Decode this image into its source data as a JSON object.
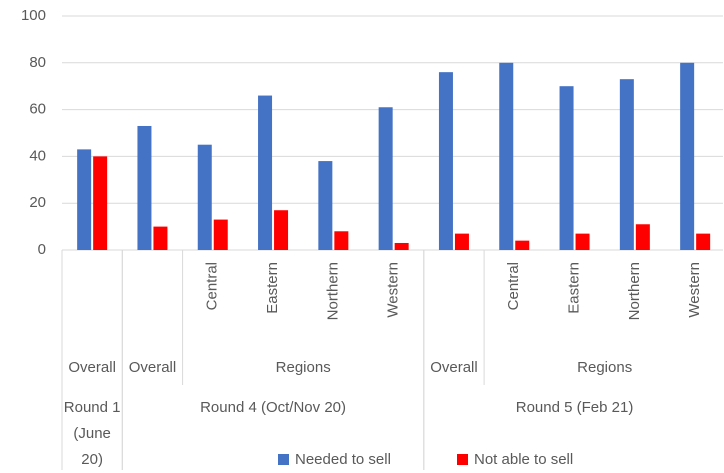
{
  "chart_data": {
    "type": "bar",
    "categories": [
      null,
      null,
      "Central",
      "Eastern",
      "Northern",
      "Western",
      null,
      "Central",
      "Eastern",
      "Northern",
      "Western"
    ],
    "groups": [
      [
        {
          "label": "Overall",
          "from": 0,
          "to": 0
        },
        {
          "label": "Overall",
          "from": 1,
          "to": 1
        },
        {
          "label": "Regions",
          "from": 2,
          "to": 5
        },
        {
          "label": "Overall",
          "from": 6,
          "to": 6
        },
        {
          "label": "Regions",
          "from": 7,
          "to": 10
        }
      ],
      [
        {
          "label": "Round 1 (June 20)",
          "from": 0,
          "to": 0
        },
        {
          "label": "Round 4 (Oct/Nov 20)",
          "from": 1,
          "to": 5
        },
        {
          "label": "Round 5 (Feb 21)",
          "from": 6,
          "to": 10
        }
      ]
    ],
    "series": [
      {
        "name": "Needed to sell",
        "color": "#4472c4",
        "values": [
          43,
          53,
          45,
          66,
          38,
          61,
          76,
          80,
          70,
          73,
          80
        ]
      },
      {
        "name": "Not able to sell",
        "color": "#ff0000",
        "values": [
          40,
          10,
          13,
          17,
          8,
          3,
          7,
          4,
          7,
          11,
          7
        ]
      }
    ],
    "ylim": [
      0,
      100
    ],
    "yticks": [
      0,
      20,
      40,
      60,
      80,
      100
    ],
    "grid": true,
    "legend": "bottom"
  }
}
